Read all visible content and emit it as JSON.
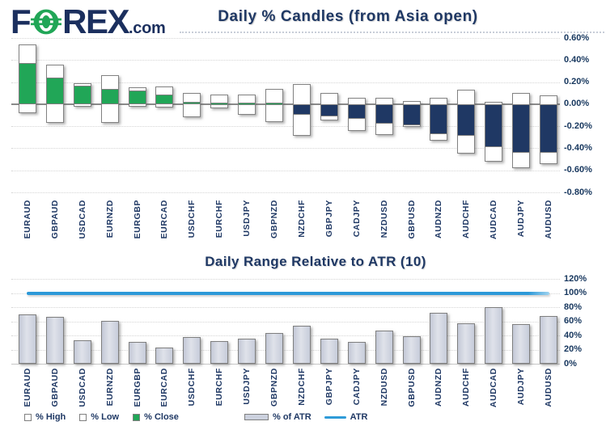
{
  "brand": {
    "f": "F",
    "rex": "REX",
    "tld": ".com",
    "navy": "#1b2f5e",
    "green": "#21a657"
  },
  "colors": {
    "title_navy": "#1f3864",
    "candle_up_green": "#21a657",
    "candle_down_navy": "#1f3864",
    "candle_border": "#828282",
    "bar_fill": "#ccd1de",
    "bar_border": "#7f7f7f",
    "atr_blue": "#2f9bd8",
    "gridline": "#d5d5d5",
    "zero_line": "#8a8a8a"
  },
  "chart_data": [
    {
      "type": "bar",
      "subtype": "floating-candle-bars",
      "title": "Daily % Candles (from Asia open)",
      "categories": [
        "EURAUD",
        "GBPAUD",
        "USDCAD",
        "EURNZD",
        "EURGBP",
        "EURCAD",
        "USDCHF",
        "EURCHF",
        "USDJPY",
        "GBPNZD",
        "NZDCHF",
        "GBPJPY",
        "CADJPY",
        "NZDUSD",
        "GBPUSD",
        "AUDNZD",
        "AUDCHF",
        "AUDCAD",
        "AUDJPY",
        "AUDUSD"
      ],
      "series": [
        {
          "name": "% High",
          "values": [
            0.54,
            0.36,
            0.19,
            0.26,
            0.15,
            0.16,
            0.1,
            0.09,
            0.09,
            0.14,
            0.18,
            0.1,
            0.06,
            0.06,
            0.03,
            0.06,
            0.13,
            0.02,
            0.1,
            0.08
          ]
        },
        {
          "name": "% Low",
          "values": [
            -0.08,
            -0.17,
            -0.02,
            -0.17,
            -0.02,
            -0.03,
            -0.12,
            -0.04,
            -0.1,
            -0.16,
            -0.29,
            -0.15,
            -0.24,
            -0.28,
            -0.21,
            -0.33,
            -0.45,
            -0.52,
            -0.58,
            -0.54
          ]
        },
        {
          "name": "% Close",
          "values": [
            0.37,
            0.24,
            0.17,
            0.14,
            0.12,
            0.09,
            0.02,
            0.01,
            0.01,
            0.01,
            -0.1,
            -0.11,
            -0.13,
            -0.18,
            -0.19,
            -0.27,
            -0.29,
            -0.39,
            -0.44,
            -0.44
          ]
        }
      ],
      "ylim": [
        -0.8,
        0.6
      ],
      "yticks": [
        {
          "label": "0.60%",
          "value": 0.6
        },
        {
          "label": "0.40%",
          "value": 0.4
        },
        {
          "label": "0.20%",
          "value": 0.2
        },
        {
          "label": "0.00%",
          "value": 0.0
        },
        {
          "label": "-0.20%",
          "value": -0.2
        },
        {
          "label": "-0.40%",
          "value": -0.4
        },
        {
          "label": "-0.60%",
          "value": -0.6
        },
        {
          "label": "-0.80%",
          "value": -0.8
        }
      ],
      "grid": true,
      "legend": [
        "% High",
        "% Low",
        "% Close"
      ],
      "legend_position": "bottom-left"
    },
    {
      "type": "bar",
      "title": "Daily Range Relative to ATR (10)",
      "categories": [
        "EURAUD",
        "GBPAUD",
        "USDCAD",
        "EURNZD",
        "EURGBP",
        "EURCAD",
        "USDCHF",
        "EURCHF",
        "USDJPY",
        "GBPNZD",
        "NZDCHF",
        "GBPJPY",
        "CADJPY",
        "NZDUSD",
        "GBPUSD",
        "AUDNZD",
        "AUDCHF",
        "AUDCAD",
        "AUDJPY",
        "AUDUSD"
      ],
      "series": [
        {
          "name": "% of ATR",
          "values": [
            70,
            66,
            33,
            61,
            31,
            23,
            38,
            32,
            35,
            44,
            54,
            36,
            31,
            47,
            39,
            72,
            57,
            80,
            56,
            67
          ]
        }
      ],
      "atr_line": {
        "name": "ATR",
        "value": 100
      },
      "ylim": [
        0,
        120
      ],
      "yticks": [
        {
          "label": "120%",
          "value": 120
        },
        {
          "label": "100%",
          "value": 100
        },
        {
          "label": "80%",
          "value": 80
        },
        {
          "label": "60%",
          "value": 60
        },
        {
          "label": "40%",
          "value": 40
        },
        {
          "label": "20%",
          "value": 20
        },
        {
          "label": "0%",
          "value": 0
        }
      ],
      "grid": true,
      "legend": [
        "% of ATR",
        "ATR"
      ],
      "legend_position": "bottom-center"
    }
  ]
}
